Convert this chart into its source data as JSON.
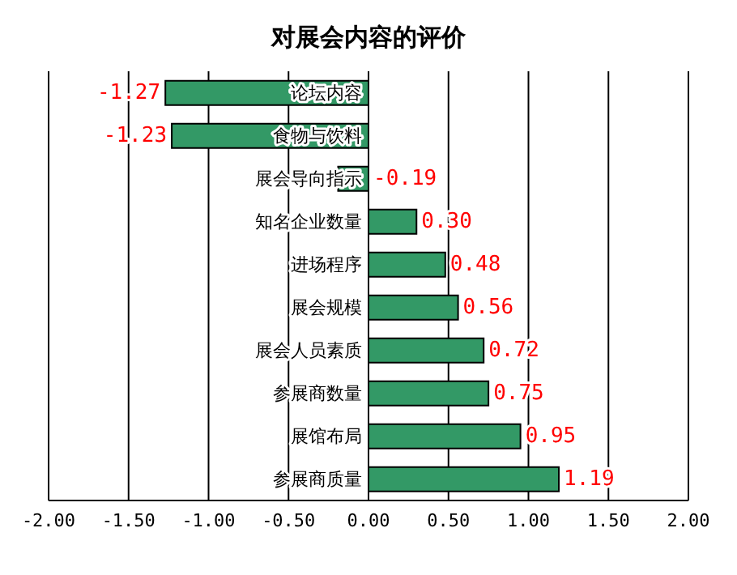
{
  "chart_data": {
    "type": "bar",
    "orientation": "horizontal",
    "title": "对展会内容的评价",
    "categories": [
      "论坛内容",
      "食物与饮料",
      "展会导向指示",
      "知名企业数量",
      "进场程序",
      "展会规模",
      "展会人员素质",
      "参展商数量",
      "展馆布局",
      "参展商质量"
    ],
    "series": [
      {
        "color": "#339966",
        "values": [
          -1.27,
          -1.23,
          -0.19,
          0.3,
          0.48,
          0.56,
          0.72,
          0.75,
          0.95,
          1.19
        ],
        "value_labels": [
          "-1.27",
          "-1.23",
          "-0.19",
          "0.30",
          "0.48",
          "0.56",
          "0.72",
          "0.75",
          "0.95",
          "1.19"
        ]
      }
    ],
    "xlim": [
      -2,
      2
    ],
    "xticks": [
      {
        "value": -2,
        "label": "-2.00"
      },
      {
        "value": -1.5,
        "label": "-1.50"
      },
      {
        "value": -1,
        "label": "-1.00"
      },
      {
        "value": -0.5,
        "label": "-0.50"
      },
      {
        "value": 0,
        "label": "0.00"
      },
      {
        "value": 0.5,
        "label": "0.50"
      },
      {
        "value": 1,
        "label": "1.00"
      },
      {
        "value": 1.5,
        "label": "1.50"
      },
      {
        "value": 2,
        "label": "2.00"
      }
    ],
    "grid": "x",
    "legend": false
  }
}
